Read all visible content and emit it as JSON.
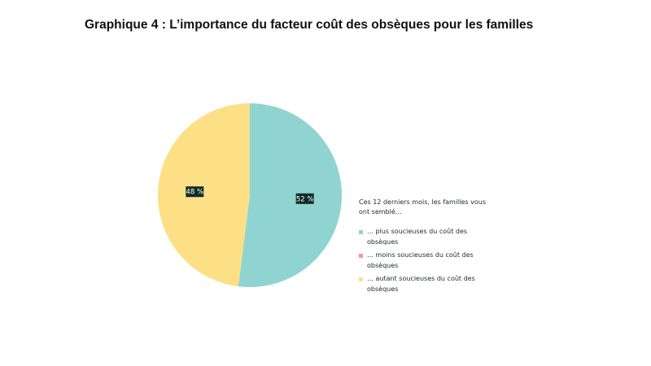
{
  "chart_data": {
    "type": "pie",
    "title": "Graphique 4 : L’importance du facteur coût des obsèques pour les familles",
    "legend_title": "Ces 12 derniers mois, les familles vous ont semblé…",
    "legend_position": "right",
    "slices": [
      {
        "label": "… plus soucieuses du coût des obsèques",
        "value": 52,
        "display": "52 %",
        "color": "#8fd4d1"
      },
      {
        "label": "… moins soucieuses du coût des obsèques",
        "value": 0,
        "display": "",
        "color": "#f29a86"
      },
      {
        "label": "… autant soucieuses du coût des obsèques",
        "value": 48,
        "display": "48 %",
        "color": "#fddf86"
      }
    ]
  }
}
